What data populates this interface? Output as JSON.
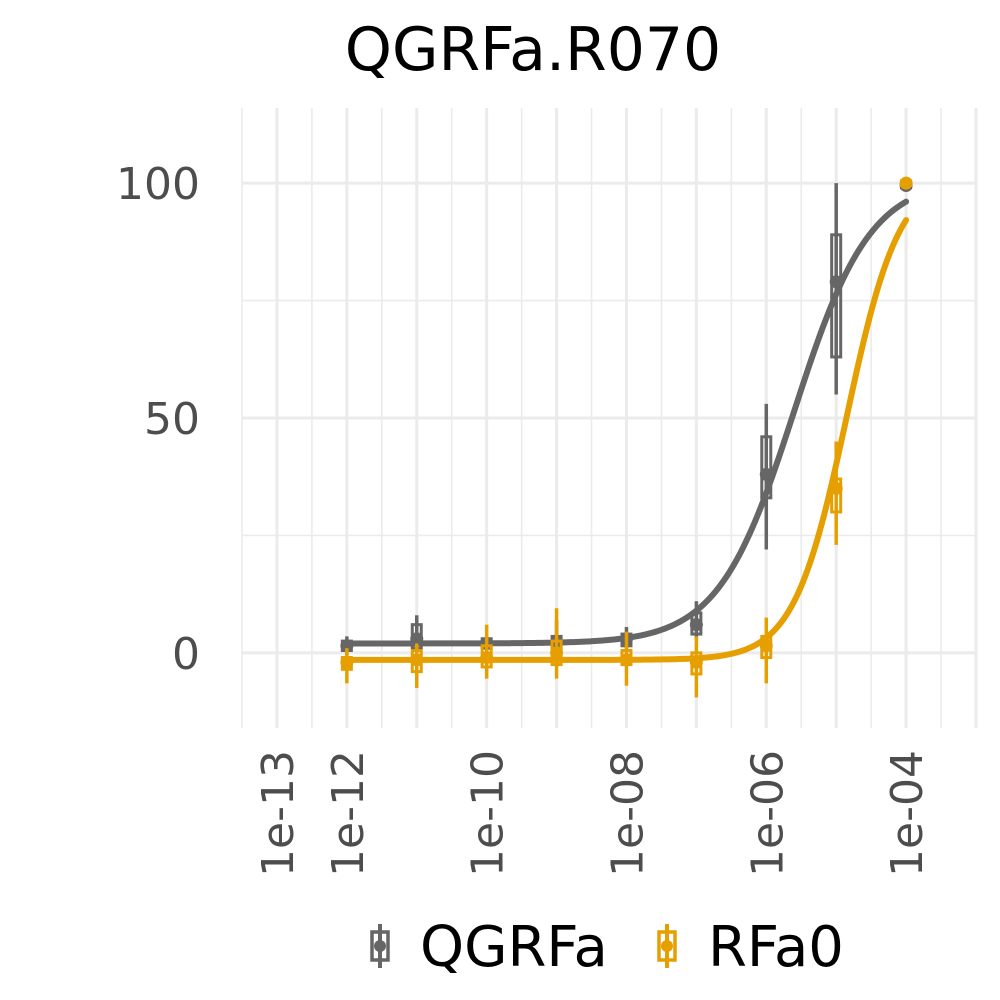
{
  "chart_data": {
    "type": "scatter",
    "title": "QGRFa.R070",
    "xscale": "log10",
    "xlim_log10": [
      -13.5,
      -3.0
    ],
    "ylim": [
      -16,
      116
    ],
    "y_ticks": [
      0,
      50,
      100
    ],
    "y_tick_labels": [
      "0",
      "50",
      "100"
    ],
    "x_ticks_log10": [
      -13,
      -12,
      -10,
      -8,
      -6,
      -4
    ],
    "x_tick_labels": [
      "1e-13",
      "1e-12",
      "1e-10",
      "1e-08",
      "1e-06",
      "1e-04"
    ],
    "grid": true,
    "legend_position": "bottom",
    "series": [
      {
        "name": "QGRFa",
        "color": "#666666",
        "x_log10": [
          -12,
          -11,
          -10,
          -9,
          -8,
          -7,
          -6,
          -5,
          -4
        ],
        "mean": [
          1.5,
          3.0,
          2.0,
          2.0,
          3.0,
          6.0,
          38.0,
          79.0,
          99.5
        ],
        "q1": [
          0.5,
          1.0,
          1.0,
          0.5,
          1.5,
          4.0,
          33.0,
          63.0,
          99.0
        ],
        "q3": [
          2.5,
          6.0,
          3.0,
          3.5,
          4.0,
          8.5,
          46.0,
          89.0,
          100.0
        ],
        "lo": [
          -0.5,
          -1.0,
          0.5,
          -1.0,
          1.0,
          3.0,
          22.0,
          55.0,
          98.5
        ],
        "hi": [
          3.5,
          8.0,
          3.5,
          7.0,
          5.5,
          11.0,
          53.0,
          100.0,
          100.5
        ],
        "fit": {
          "bottom": 2.0,
          "top": 101.0,
          "log_ec50": -5.6,
          "hill": 0.8
        }
      },
      {
        "name": "RFa0",
        "color": "#E69F00",
        "x_log10": [
          -12,
          -11,
          -10,
          -9,
          -8,
          -7,
          -6,
          -5,
          -4
        ],
        "mean": [
          -2.0,
          -1.5,
          -1.0,
          0.0,
          -1.5,
          -2.0,
          1.5,
          35.0,
          100.0
        ],
        "q1": [
          -3.5,
          -4.0,
          -3.0,
          -2.5,
          -2.5,
          -4.5,
          -1.0,
          30.0,
          99.5
        ],
        "q3": [
          -1.0,
          0.5,
          1.5,
          2.5,
          0.5,
          0.0,
          3.5,
          37.0,
          100.5
        ],
        "lo": [
          -6.5,
          -7.5,
          -5.5,
          -5.5,
          -7.0,
          -9.5,
          -6.5,
          23.0,
          99.0
        ],
        "hi": [
          1.0,
          2.0,
          6.0,
          9.5,
          4.5,
          3.5,
          7.5,
          45.0,
          101.0
        ],
        "fit": {
          "bottom": -1.5,
          "top": 102.0,
          "log_ec50": -4.85,
          "hill": 1.15
        }
      }
    ]
  },
  "legend": {
    "items": [
      {
        "label": "QGRFa",
        "color": "#666666"
      },
      {
        "label": "RFa0",
        "color": "#E69F00"
      }
    ]
  },
  "colors": {
    "grid": "#ebebeb",
    "tick_text": "#4d4d4d",
    "title_text": "#000000"
  }
}
